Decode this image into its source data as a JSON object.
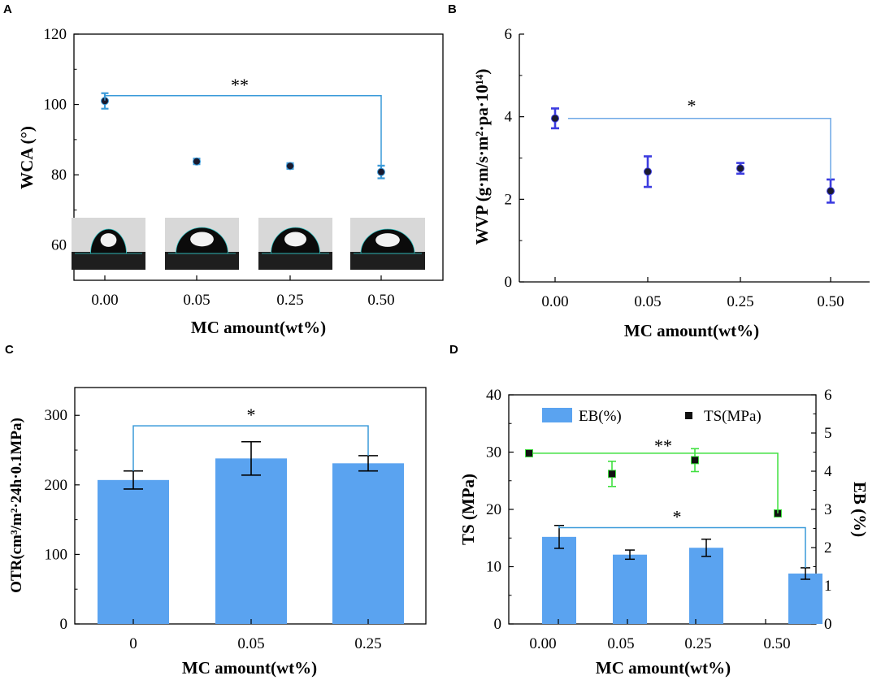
{
  "panels": {
    "A": {
      "letter": "A"
    },
    "B": {
      "letter": "B"
    },
    "C": {
      "letter": "C"
    },
    "D": {
      "letter": "D"
    }
  },
  "chart_data": [
    {
      "id": "A",
      "type": "scatter",
      "title": "",
      "xlabel": "MC amount(wt%)",
      "ylabel": "WCA (°)",
      "categories": [
        "0.00",
        "0.05",
        "0.25",
        "0.50"
      ],
      "ylim": [
        50,
        120
      ],
      "yticks": [
        "60",
        "80",
        "100",
        "120"
      ],
      "values": [
        101,
        83.8,
        82.5,
        80.8
      ],
      "errors": [
        2.2,
        0.8,
        0.8,
        1.8
      ],
      "marker_color": "#1a1a2e",
      "error_color": "#3a9ad9",
      "significance": {
        "label": "**",
        "from": 0,
        "to": 3,
        "level": 102.5
      },
      "inset": "contact-angle droplet photos above each category"
    },
    {
      "id": "B",
      "type": "scatter",
      "title": "",
      "xlabel": "MC amount(wt%)",
      "ylabel": "WVP (g·m/s·m²·pa·10¹⁴)",
      "categories": [
        "0.00",
        "0.05",
        "0.25",
        "0.50"
      ],
      "ylim": [
        0,
        6
      ],
      "yticks": [
        "0",
        "2",
        "4",
        "6"
      ],
      "values": [
        3.96,
        2.67,
        2.75,
        2.2
      ],
      "errors": [
        0.24,
        0.37,
        0.13,
        0.28
      ],
      "marker_color": "#1a1a2e",
      "error_color": "#3c3ce0",
      "significance": {
        "label": "*",
        "from": 0,
        "to": 3,
        "level": 3.96
      }
    },
    {
      "id": "C",
      "type": "bar",
      "title": "",
      "xlabel": "MC amount(wt%)",
      "ylabel": "OTR(cm³/m²·24h·0.1MPa)",
      "categories": [
        "0",
        "0.05",
        "0.25"
      ],
      "ylim": [
        0,
        340
      ],
      "yticks": [
        "0",
        "100",
        "200",
        "300"
      ],
      "values": [
        207,
        238,
        231
      ],
      "errors": [
        13,
        24,
        11
      ],
      "bar_color": "#5aa3f0",
      "significance": {
        "label": "*",
        "from": 0,
        "to": 2,
        "level": 285
      }
    },
    {
      "id": "D",
      "type": "bar",
      "title": "",
      "xlabel": "MC amount(wt%)",
      "ylabel": "TS (MPa)",
      "ylabel_right": "EB (%)",
      "categories": [
        "0.00",
        "0.05",
        "0.25",
        "0.50"
      ],
      "ylim": [
        0,
        40
      ],
      "yticks": [
        "0",
        "10",
        "20",
        "30",
        "40"
      ],
      "ylim_right": [
        0,
        6
      ],
      "yticks_right": [
        "0",
        "1",
        "2",
        "3",
        "4",
        "5",
        "6"
      ],
      "series": [
        {
          "name": "EB(%)",
          "axis": "left",
          "kind": "bar",
          "color": "#5aa3f0",
          "values": [
            15.2,
            12.1,
            13.3,
            8.8
          ],
          "errors": [
            2.0,
            0.8,
            1.5,
            1.0
          ]
        },
        {
          "name": "TS(MPa)",
          "axis": "left",
          "kind": "scatter",
          "color": "#111111",
          "values": [
            29.8,
            26.2,
            28.6,
            19.3
          ],
          "errors": [
            0.4,
            2.2,
            2.0,
            0.3
          ]
        }
      ],
      "significance": [
        {
          "label": "**",
          "from": 0,
          "to": 3,
          "level": 29.8,
          "color": "#40e040"
        },
        {
          "label": "*",
          "from": 0,
          "to": 3,
          "level": 16.8,
          "color": "#3a9ad9"
        }
      ],
      "legend": [
        "EB(%)",
        "TS(MPa)"
      ]
    }
  ]
}
